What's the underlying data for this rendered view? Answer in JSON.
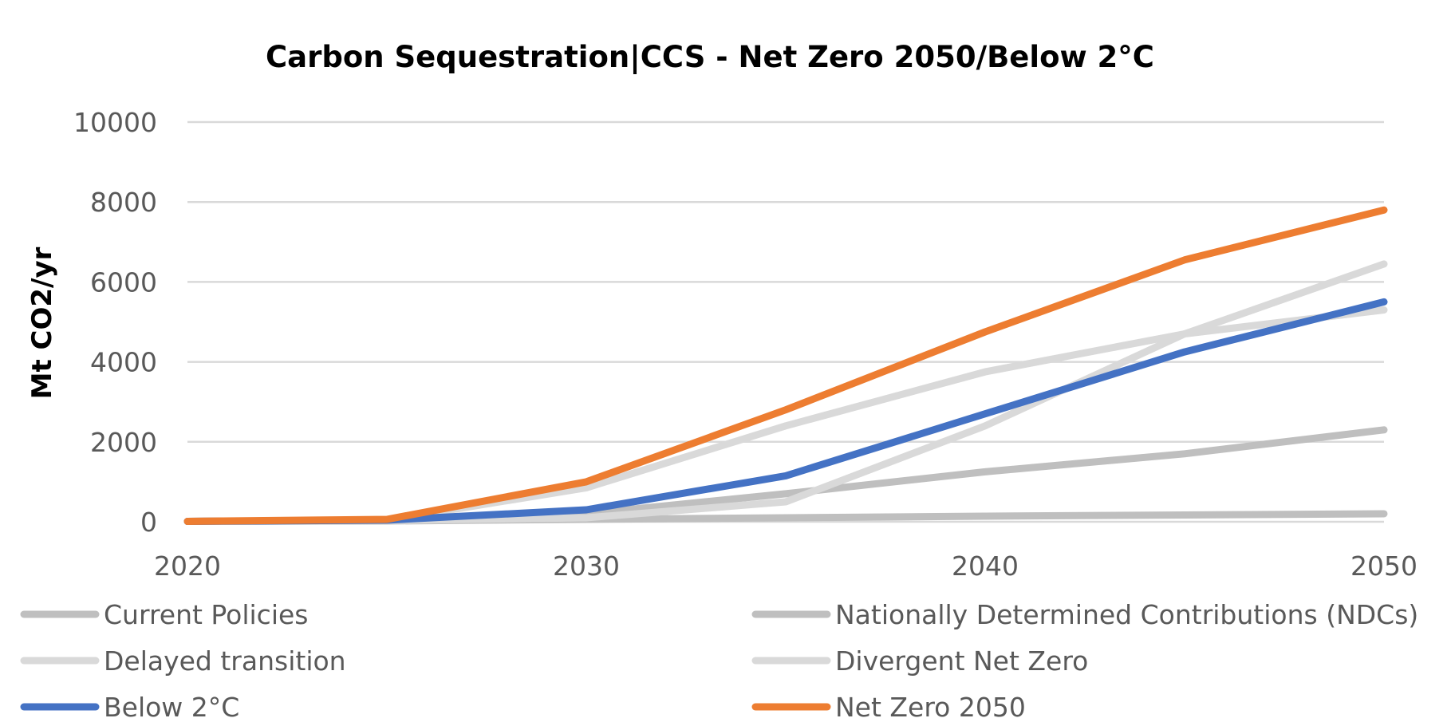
{
  "chart_data": {
    "type": "line",
    "title": "Carbon Sequestration|CCS - Net Zero 2050/Below 2°C",
    "xlabel": "",
    "ylabel": "Mt CO2/yr",
    "x": [
      2020,
      2025,
      2030,
      2035,
      2040,
      2045,
      2050
    ],
    "xticks": [
      "2020",
      "2030",
      "2040",
      "2050"
    ],
    "xlim": [
      2020,
      2050
    ],
    "yticks": [
      "0",
      "2000",
      "4000",
      "6000",
      "8000",
      "10000"
    ],
    "ylim": [
      0,
      10000
    ],
    "grid": true,
    "legend_position": "bottom",
    "series": [
      {
        "name": "Current Policies",
        "color": "#bfbfbf",
        "values": [
          10,
          20,
          60,
          100,
          140,
          170,
          200
        ]
      },
      {
        "name": "Nationally Determined Contributions (NDCs)",
        "color": "#bfbfbf",
        "values": [
          10,
          30,
          200,
          700,
          1250,
          1700,
          2300
        ]
      },
      {
        "name": "Delayed transition",
        "color": "#d9d9d9",
        "values": [
          10,
          30,
          100,
          500,
          2400,
          4700,
          6450
        ]
      },
      {
        "name": "Divergent Net Zero",
        "color": "#d9d9d9",
        "values": [
          10,
          40,
          850,
          2400,
          3750,
          4700,
          5300
        ]
      },
      {
        "name": "Below 2°C",
        "color": "#4472c4",
        "values": [
          10,
          40,
          300,
          1150,
          2700,
          4250,
          5500
        ]
      },
      {
        "name": "Net Zero 2050",
        "color": "#ed7d31",
        "values": [
          10,
          60,
          1000,
          2800,
          4750,
          6550,
          7800
        ]
      }
    ]
  }
}
